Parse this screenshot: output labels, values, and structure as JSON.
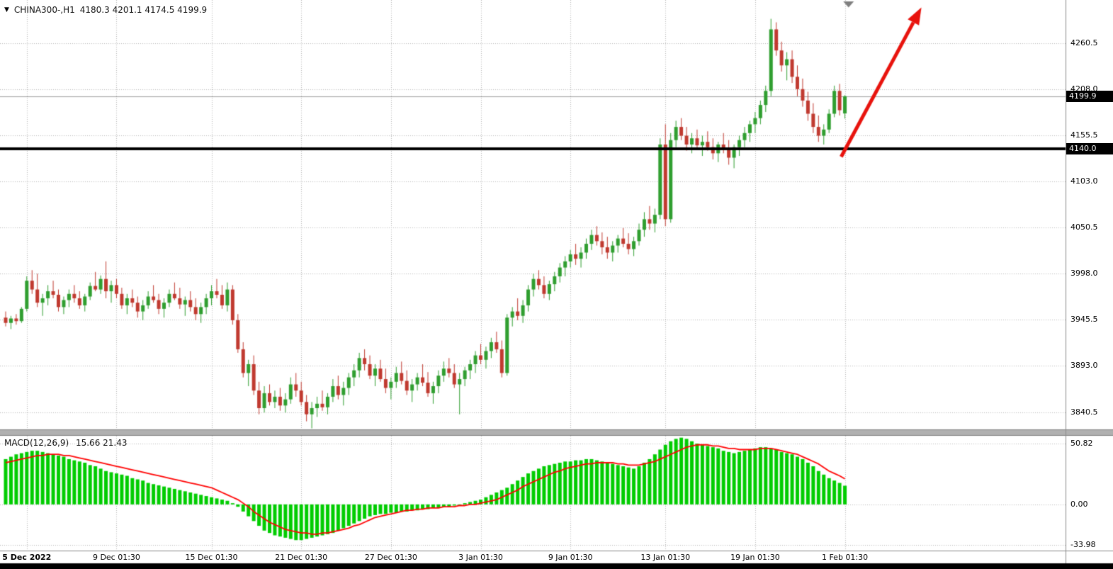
{
  "header": {
    "symbol": "CHINA300-,H1",
    "ohlc_text": "4180.3 4201.1 4174.5 4199.9"
  },
  "price_axis": {
    "labels": [
      "4260.5",
      "4208.0",
      "4155.5",
      "4103.0",
      "4050.5",
      "3998.0",
      "3945.5",
      "3893.0",
      "3840.5"
    ],
    "current_tag": "4199.9",
    "level_tag": "4140.0"
  },
  "macd_panel": {
    "title": "MACD(12,26,9)",
    "values_text": "15.66 21.43",
    "axis_labels": [
      "50.82",
      "0.00",
      "-33.98"
    ]
  },
  "time_axis": {
    "ticks": [
      {
        "label": "5 Dec 2022",
        "i": 4,
        "bold": true
      },
      {
        "label": "9 Dec 01:30",
        "i": 21
      },
      {
        "label": "15 Dec 01:30",
        "i": 39
      },
      {
        "label": "21 Dec 01:30",
        "i": 56
      },
      {
        "label": "27 Dec 01:30",
        "i": 73
      },
      {
        "label": "3 Jan 01:30",
        "i": 90
      },
      {
        "label": "9 Jan 01:30",
        "i": 107
      },
      {
        "label": "13 Jan 01:30",
        "i": 125
      },
      {
        "label": "19 Jan 01:30",
        "i": 142
      },
      {
        "label": "1 Feb 01:30",
        "i": 159
      }
    ]
  },
  "colors": {
    "up": "#2f9e2f",
    "down": "#c0392f",
    "histogram": "#00cc00",
    "signal": "#ff0000",
    "grid": "#b3b3b3",
    "current_price_line": "#9b9b9b",
    "level_line": "#000000",
    "arrow": "#e8120c",
    "tag_bg": "#000000",
    "tag_text": "#ffffff",
    "separator": "#b0b0b0"
  },
  "chart_data": {
    "type": "candlestick",
    "symbol": "CHINA300-",
    "timeframe": "H1",
    "ohlc_current": {
      "open": 4180.3,
      "high": 4201.1,
      "low": 4174.5,
      "close": 4199.9
    },
    "price_axis_ticks": [
      4260.5,
      4208.0,
      4155.5,
      4103.0,
      4050.5,
      3998.0,
      3945.5,
      3893.0,
      3840.5
    ],
    "price_range": [
      3820,
      4307
    ],
    "grid": true,
    "candles": [
      [
        3948,
        3955,
        3938,
        3942
      ],
      [
        3942,
        3950,
        3935,
        3947
      ],
      [
        3947,
        3952,
        3940,
        3944
      ],
      [
        3944,
        3960,
        3942,
        3958
      ],
      [
        3958,
        3995,
        3955,
        3990
      ],
      [
        3990,
        4002,
        3975,
        3980
      ],
      [
        3980,
        3998,
        3960,
        3965
      ],
      [
        3965,
        3975,
        3950,
        3970
      ],
      [
        3970,
        3985,
        3962,
        3978
      ],
      [
        3978,
        3990,
        3970,
        3974
      ],
      [
        3974,
        3980,
        3955,
        3960
      ],
      [
        3960,
        3972,
        3952,
        3968
      ],
      [
        3968,
        3980,
        3960,
        3975
      ],
      [
        3975,
        3985,
        3965,
        3970
      ],
      [
        3970,
        3978,
        3958,
        3962
      ],
      [
        3962,
        3975,
        3955,
        3972
      ],
      [
        3972,
        3988,
        3968,
        3984
      ],
      [
        3984,
        4000,
        3978,
        3980
      ],
      [
        3980,
        3996,
        3975,
        3992
      ],
      [
        3992,
        4012,
        3970,
        3978
      ],
      [
        3978,
        3990,
        3965,
        3985
      ],
      [
        3985,
        3992,
        3970,
        3975
      ],
      [
        3975,
        3982,
        3958,
        3962
      ],
      [
        3962,
        3975,
        3952,
        3970
      ],
      [
        3970,
        3980,
        3960,
        3965
      ],
      [
        3965,
        3972,
        3948,
        3955
      ],
      [
        3955,
        3968,
        3945,
        3962
      ],
      [
        3962,
        3978,
        3958,
        3972
      ],
      [
        3972,
        3985,
        3965,
        3968
      ],
      [
        3968,
        3975,
        3952,
        3958
      ],
      [
        3958,
        3970,
        3948,
        3965
      ],
      [
        3965,
        3980,
        3960,
        3975
      ],
      [
        3975,
        3988,
        3968,
        3970
      ],
      [
        3970,
        3982,
        3958,
        3963
      ],
      [
        3963,
        3972,
        3950,
        3968
      ],
      [
        3968,
        3978,
        3955,
        3960
      ],
      [
        3960,
        3970,
        3945,
        3952
      ],
      [
        3952,
        3965,
        3942,
        3960
      ],
      [
        3960,
        3975,
        3952,
        3970
      ],
      [
        3970,
        3985,
        3962,
        3978
      ],
      [
        3978,
        3992,
        3970,
        3974
      ],
      [
        3974,
        3985,
        3958,
        3962
      ],
      [
        3962,
        3988,
        3955,
        3980
      ],
      [
        3980,
        3985,
        3940,
        3945
      ],
      [
        3945,
        3952,
        3908,
        3912
      ],
      [
        3912,
        3920,
        3880,
        3885
      ],
      [
        3885,
        3900,
        3870,
        3895
      ],
      [
        3895,
        3905,
        3860,
        3865
      ],
      [
        3865,
        3875,
        3838,
        3845
      ],
      [
        3845,
        3870,
        3840,
        3862
      ],
      [
        3862,
        3872,
        3848,
        3852
      ],
      [
        3852,
        3865,
        3845,
        3858
      ],
      [
        3858,
        3868,
        3842,
        3848
      ],
      [
        3848,
        3862,
        3840,
        3855
      ],
      [
        3855,
        3880,
        3850,
        3872
      ],
      [
        3872,
        3885,
        3858,
        3865
      ],
      [
        3865,
        3875,
        3848,
        3852
      ],
      [
        3852,
        3860,
        3830,
        3838
      ],
      [
        3838,
        3852,
        3822,
        3845
      ],
      [
        3845,
        3858,
        3835,
        3850
      ],
      [
        3850,
        3865,
        3842,
        3846
      ],
      [
        3846,
        3862,
        3838,
        3858
      ],
      [
        3858,
        3878,
        3852,
        3870
      ],
      [
        3870,
        3882,
        3855,
        3860
      ],
      [
        3860,
        3875,
        3848,
        3868
      ],
      [
        3868,
        3885,
        3860,
        3880
      ],
      [
        3880,
        3895,
        3870,
        3888
      ],
      [
        3888,
        3908,
        3880,
        3902
      ],
      [
        3902,
        3912,
        3888,
        3895
      ],
      [
        3895,
        3905,
        3878,
        3882
      ],
      [
        3882,
        3895,
        3870,
        3890
      ],
      [
        3890,
        3900,
        3875,
        3878
      ],
      [
        3878,
        3890,
        3862,
        3868
      ],
      [
        3868,
        3880,
        3855,
        3875
      ],
      [
        3875,
        3892,
        3868,
        3885
      ],
      [
        3885,
        3898,
        3872,
        3876
      ],
      [
        3876,
        3888,
        3860,
        3865
      ],
      [
        3865,
        3878,
        3852,
        3872
      ],
      [
        3872,
        3885,
        3865,
        3880
      ],
      [
        3880,
        3895,
        3870,
        3874
      ],
      [
        3874,
        3886,
        3858,
        3862
      ],
      [
        3862,
        3875,
        3850,
        3870
      ],
      [
        3870,
        3888,
        3862,
        3882
      ],
      [
        3882,
        3898,
        3875,
        3890
      ],
      [
        3890,
        3902,
        3880,
        3885
      ],
      [
        3885,
        3895,
        3868,
        3872
      ],
      [
        3872,
        3885,
        3838,
        3878
      ],
      [
        3878,
        3892,
        3870,
        3888
      ],
      [
        3888,
        3900,
        3878,
        3895
      ],
      [
        3895,
        3910,
        3885,
        3905
      ],
      [
        3905,
        3918,
        3895,
        3900
      ],
      [
        3900,
        3915,
        3890,
        3910
      ],
      [
        3910,
        3925,
        3902,
        3920
      ],
      [
        3920,
        3932,
        3908,
        3912
      ],
      [
        3912,
        3922,
        3880,
        3885
      ],
      [
        3885,
        3952,
        3882,
        3948
      ],
      [
        3948,
        3960,
        3938,
        3955
      ],
      [
        3955,
        3970,
        3945,
        3950
      ],
      [
        3950,
        3968,
        3942,
        3962
      ],
      [
        3962,
        3985,
        3955,
        3980
      ],
      [
        3980,
        3998,
        3972,
        3992
      ],
      [
        3992,
        4002,
        3980,
        3985
      ],
      [
        3985,
        3995,
        3970,
        3975
      ],
      [
        3975,
        3990,
        3968,
        3986
      ],
      [
        3986,
        4000,
        3978,
        3995
      ],
      [
        3995,
        4010,
        3988,
        4005
      ],
      [
        4005,
        4018,
        3995,
        4012
      ],
      [
        4012,
        4025,
        4005,
        4020
      ],
      [
        4020,
        4032,
        4008,
        4015
      ],
      [
        4015,
        4028,
        4005,
        4022
      ],
      [
        4022,
        4038,
        4015,
        4032
      ],
      [
        4032,
        4048,
        4025,
        4042
      ],
      [
        4042,
        4052,
        4030,
        4035
      ],
      [
        4035,
        4045,
        4020,
        4028
      ],
      [
        4028,
        4040,
        4015,
        4022
      ],
      [
        4022,
        4035,
        4012,
        4030
      ],
      [
        4030,
        4042,
        4022,
        4038
      ],
      [
        4038,
        4050,
        4028,
        4032
      ],
      [
        4032,
        4044,
        4020,
        4026
      ],
      [
        4026,
        4040,
        4018,
        4035
      ],
      [
        4035,
        4055,
        4030,
        4048
      ],
      [
        4048,
        4068,
        4040,
        4060
      ],
      [
        4060,
        4075,
        4048,
        4055
      ],
      [
        4055,
        4072,
        4045,
        4065
      ],
      [
        4065,
        4152,
        4060,
        4145
      ],
      [
        4145,
        4168,
        4052,
        4060
      ],
      [
        4060,
        4158,
        4056,
        4150
      ],
      [
        4150,
        4172,
        4142,
        4165
      ],
      [
        4165,
        4175,
        4150,
        4155
      ],
      [
        4155,
        4165,
        4138,
        4145
      ],
      [
        4145,
        4158,
        4135,
        4152
      ],
      [
        4152,
        4162,
        4140,
        4144
      ],
      [
        4144,
        4155,
        4132,
        4148
      ],
      [
        4148,
        4160,
        4138,
        4142
      ],
      [
        4142,
        4152,
        4128,
        4135
      ],
      [
        4135,
        4148,
        4125,
        4145
      ],
      [
        4145,
        4158,
        4135,
        4140
      ],
      [
        4140,
        4150,
        4122,
        4130
      ],
      [
        4130,
        4145,
        4118,
        4142
      ],
      [
        4142,
        4155,
        4132,
        4150
      ],
      [
        4150,
        4165,
        4142,
        4158
      ],
      [
        4158,
        4172,
        4148,
        4168
      ],
      [
        4168,
        4182,
        4158,
        4175
      ],
      [
        4175,
        4195,
        4168,
        4190
      ],
      [
        4190,
        4212,
        4182,
        4206
      ],
      [
        4206,
        4288,
        4200,
        4276
      ],
      [
        4276,
        4284,
        4246,
        4252
      ],
      [
        4252,
        4262,
        4228,
        4235
      ],
      [
        4235,
        4250,
        4218,
        4242
      ],
      [
        4242,
        4252,
        4215,
        4222
      ],
      [
        4222,
        4235,
        4200,
        4208
      ],
      [
        4208,
        4220,
        4188,
        4195
      ],
      [
        4195,
        4205,
        4172,
        4180
      ],
      [
        4180,
        4192,
        4158,
        4165
      ],
      [
        4165,
        4178,
        4148,
        4155
      ],
      [
        4155,
        4168,
        4145,
        4162
      ],
      [
        4162,
        4185,
        4158,
        4180
      ],
      [
        4180,
        4212,
        4176,
        4206
      ],
      [
        4206,
        4214,
        4178,
        4184
      ],
      [
        4180.3,
        4201.1,
        4174.5,
        4199.9
      ]
    ],
    "indicator": {
      "name": "MACD(12,26,9)",
      "type": "histogram+line",
      "current_values": [
        15.66,
        21.43
      ],
      "axis_ticks": [
        50.82,
        0.0,
        -33.98
      ],
      "range": [
        -37,
        57
      ],
      "histogram": [
        38,
        40,
        42,
        43,
        44,
        45,
        45,
        44,
        43,
        42,
        41,
        40,
        38,
        37,
        36,
        35,
        33,
        32,
        30,
        28,
        27,
        26,
        25,
        24,
        22,
        21,
        20,
        18,
        17,
        16,
        15,
        14,
        13,
        12,
        11,
        10,
        9,
        8,
        7,
        6,
        5,
        4,
        3,
        1,
        -2,
        -6,
        -10,
        -14,
        -18,
        -22,
        -24,
        -26,
        -27,
        -28,
        -29,
        -30,
        -30,
        -29,
        -28,
        -27,
        -26,
        -25,
        -24,
        -22,
        -20,
        -18,
        -16,
        -14,
        -12,
        -10,
        -9,
        -8,
        -8,
        -7,
        -7,
        -6,
        -6,
        -5,
        -5,
        -4,
        -4,
        -3,
        -3,
        -2,
        -2,
        -1,
        0,
        1,
        2,
        3,
        4,
        6,
        8,
        10,
        12,
        14,
        17,
        20,
        23,
        26,
        28,
        30,
        32,
        33,
        34,
        35,
        36,
        36,
        37,
        37,
        38,
        38,
        37,
        36,
        35,
        34,
        33,
        32,
        31,
        30,
        32,
        35,
        38,
        42,
        46,
        50,
        53,
        55,
        56,
        55,
        53,
        51,
        50,
        49,
        48,
        47,
        45,
        44,
        43,
        44,
        45,
        46,
        47,
        48,
        48,
        47,
        46,
        44,
        43,
        42,
        40,
        38,
        35,
        32,
        28,
        25,
        22,
        20,
        18,
        15.66
      ],
      "signal": [
        35,
        36,
        37,
        38,
        39,
        40,
        41,
        41,
        42,
        42,
        42,
        41,
        41,
        40,
        39,
        38,
        37,
        36,
        35,
        34,
        33,
        32,
        31,
        30,
        29,
        28,
        27,
        26,
        25,
        24,
        23,
        22,
        21,
        20,
        19,
        18,
        17,
        16,
        15,
        14,
        12,
        10,
        8,
        6,
        4,
        1,
        -2,
        -6,
        -9,
        -12,
        -15,
        -17,
        -19,
        -21,
        -22,
        -23,
        -24,
        -24,
        -25,
        -25,
        -24,
        -24,
        -23,
        -22,
        -21,
        -20,
        -18,
        -17,
        -15,
        -13,
        -11,
        -10,
        -9,
        -8,
        -7,
        -6,
        -5,
        -5,
        -4,
        -4,
        -3,
        -3,
        -3,
        -2,
        -2,
        -2,
        -1,
        -1,
        0,
        0,
        1,
        2,
        3,
        4,
        6,
        8,
        10,
        12,
        15,
        17,
        19,
        21,
        23,
        25,
        27,
        28,
        30,
        31,
        32,
        33,
        34,
        34,
        35,
        35,
        35,
        35,
        34,
        34,
        33,
        33,
        33,
        34,
        35,
        36,
        38,
        40,
        42,
        44,
        46,
        48,
        49,
        50,
        50,
        50,
        49,
        49,
        48,
        47,
        47,
        46,
        46,
        46,
        46,
        47,
        47,
        47,
        46,
        45,
        44,
        43,
        42,
        40,
        38,
        36,
        34,
        31,
        28,
        26,
        24,
        21.43
      ]
    },
    "annotations": {
      "horizontal_line": {
        "price": 4140.0,
        "width": 4
      },
      "current_price_line": {
        "price": 4199.9
      },
      "trend_arrow": {
        "from": {
          "i": 158.3,
          "price": 4131
        },
        "to": {
          "i": 173.5,
          "price": 4301
        }
      },
      "top_marker_triangle": {
        "i": 159.7
      }
    }
  }
}
